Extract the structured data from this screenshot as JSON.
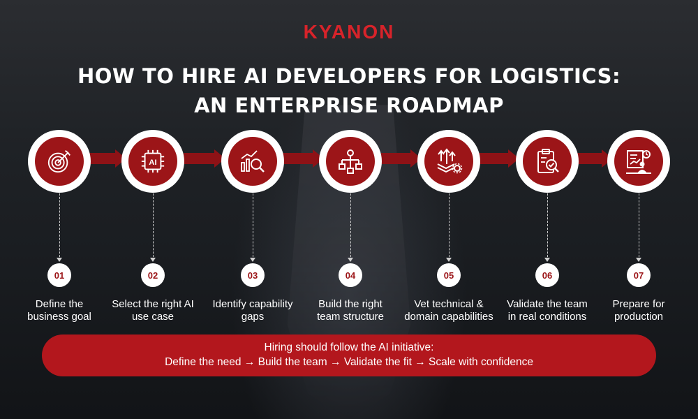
{
  "brand": {
    "logo_text": "KYANON",
    "accent": "#d8232a"
  },
  "title": {
    "line1": "HOW TO HIRE AI DEVELOPERS FOR LOGISTICS:",
    "line2": "AN ENTERPRISE ROADMAP"
  },
  "steps": [
    {
      "number": "01",
      "label_line1": "Define the",
      "label_line2": "business goal",
      "icon": "target-icon"
    },
    {
      "number": "02",
      "label_line1": "Select the right AI",
      "label_line2": "use case",
      "icon": "ai-chip-icon"
    },
    {
      "number": "03",
      "label_line1": "Identify capability",
      "label_line2": "gaps",
      "icon": "chart-magnifier-icon"
    },
    {
      "number": "04",
      "label_line1": "Build the right",
      "label_line2": "team structure",
      "icon": "org-structure-icon"
    },
    {
      "number": "05",
      "label_line1": "Vet technical &",
      "label_line2": "domain capabilities",
      "icon": "layers-gear-icon"
    },
    {
      "number": "06",
      "label_line1": "Validate the team",
      "label_line2": "in real conditions",
      "icon": "clipboard-check-icon"
    },
    {
      "number": "07",
      "label_line1": "Prepare for",
      "label_line2": "production",
      "icon": "presentation-icon"
    }
  ],
  "banner": {
    "line1": "Hiring should follow the AI initiative:",
    "line2": "Define the need → Build the team → Validate the fit → Scale with confidence"
  },
  "colors": {
    "step_fill": "#9c1518",
    "banner_fill": "#b3171d",
    "arrow_fill": "#8e1216"
  }
}
